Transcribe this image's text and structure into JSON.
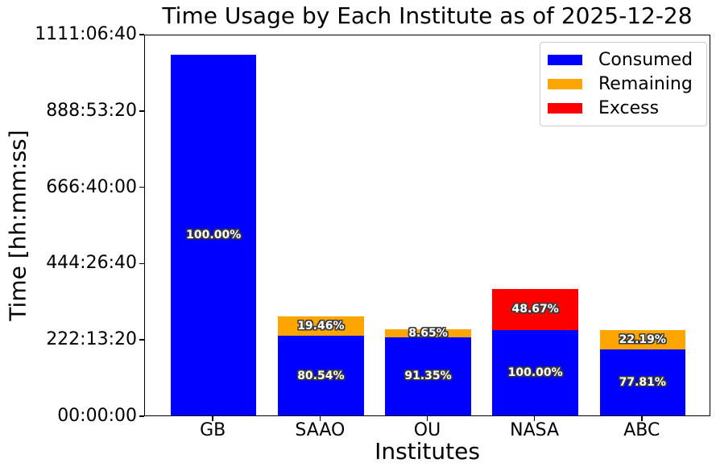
{
  "chart_data": {
    "type": "bar",
    "stacked": true,
    "title": "Time Usage by Each Institute as of 2025-12-28",
    "xlabel": "Institutes",
    "ylabel": "Time [hh:mm:ss]",
    "categories": [
      "GB",
      "SAAO",
      "OU",
      "NASA",
      "ABC"
    ],
    "ytick_labels": [
      "00:00:00",
      "222:13:20",
      "444:26:40",
      "666:40:00",
      "888:53:20",
      "1111:06:40"
    ],
    "ytick_seconds": [
      0,
      800000,
      1600000,
      2400000,
      3200000,
      4000000
    ],
    "ylim_seconds": [
      0,
      4000000
    ],
    "grid": false,
    "legend_position": "upper right",
    "series": [
      {
        "name": "Consumed",
        "color": "#0000ff",
        "values_seconds": [
          3780000,
          835040,
          822150,
          892800,
          694690
        ],
        "labels": [
          "100.00%",
          "80.54%",
          "91.35%",
          "100.00%",
          "77.81%"
        ]
      },
      {
        "name": "Remaining",
        "color": "#ffa500",
        "values_seconds": [
          0,
          201760,
          77850,
          0,
          198110
        ],
        "labels": [
          "",
          "19.46%",
          "8.65%",
          "",
          "22.19%"
        ]
      },
      {
        "name": "Excess",
        "color": "#ff0000",
        "values_seconds": [
          0,
          0,
          0,
          434530,
          0
        ],
        "labels": [
          "",
          "",
          "",
          "48.67%",
          ""
        ]
      }
    ]
  }
}
